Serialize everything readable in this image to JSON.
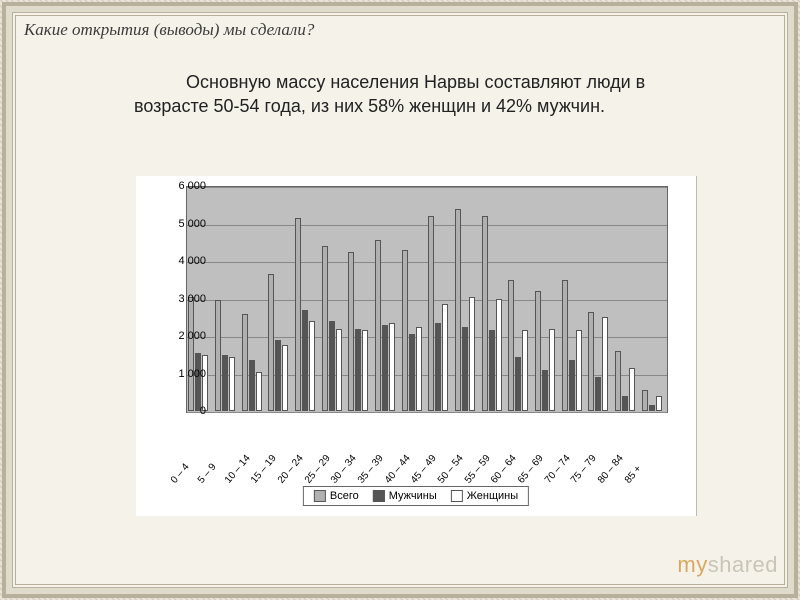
{
  "title": "Какие открытия (выводы) мы сделали?",
  "body": "Основную массу населения Нарвы составляют люди в возрасте 50-54 года, из них 58% женщин и 42% мужчин.",
  "watermark_part1": "my",
  "watermark_part2": "shared",
  "chart": {
    "type": "bar",
    "y_max": 6000,
    "y_ticks": [
      0,
      1000,
      2000,
      3000,
      4000,
      5000,
      6000
    ],
    "y_tick_labels": [
      "0",
      "1 000",
      "2 000",
      "3 000",
      "4 000",
      "5 000",
      "6 000"
    ],
    "series": [
      {
        "key": "total",
        "label": "Всего",
        "color": "#b0b0b0"
      },
      {
        "key": "m",
        "label": "Мужчины",
        "color": "#555555"
      },
      {
        "key": "w",
        "label": "Женщины",
        "color": "#ffffff"
      }
    ],
    "categories": [
      "0 – 4",
      "5 – 9",
      "10 – 14",
      "15 – 19",
      "20 – 24",
      "25 – 29",
      "30 – 34",
      "35 – 39",
      "40 – 44",
      "45 – 49",
      "50 – 54",
      "55 – 59",
      "60 – 64",
      "65 – 69",
      "70 – 74",
      "75 – 79",
      "80 – 84",
      "85 +"
    ],
    "data": {
      "total": [
        3050,
        2950,
        2600,
        3650,
        5150,
        4400,
        4250,
        4550,
        4300,
        5200,
        5400,
        5200,
        3500,
        3200,
        3500,
        2650,
        1600,
        550
      ],
      "m": [
        1550,
        1500,
        1350,
        1900,
        2700,
        2400,
        2200,
        2300,
        2050,
        2350,
        2250,
        2150,
        1450,
        1100,
        1350,
        900,
        400,
        150
      ],
      "w": [
        1500,
        1450,
        1050,
        1750,
        2400,
        2200,
        2150,
        2350,
        2250,
        2850,
        3050,
        3000,
        2150,
        2200,
        2150,
        2500,
        1150,
        400
      ]
    },
    "plot_bg": "#bfbfbf",
    "grid_color": "#888888",
    "font_size_axis": 11,
    "font_size_category": 10
  }
}
